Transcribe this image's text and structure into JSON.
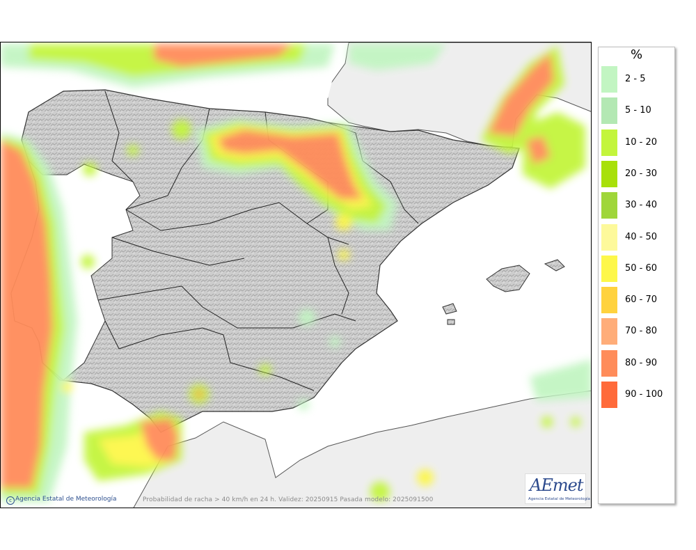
{
  "map": {
    "caption": "Probabilidad de racha > 40 km/h en 24 h. Validez: 20250915 Pasada modelo: 2025091500",
    "credit": "Agencia Estatal de Meteorología",
    "logo_text": "AEmet",
    "logo_subtitle": "Agencia Estatal de Meteorología"
  },
  "legend": {
    "unit": "%",
    "items": [
      {
        "label": "2 - 5",
        "color": "#c2f5c2"
      },
      {
        "label": "5 - 10",
        "color": "#b3e8b3"
      },
      {
        "label": "10 - 20",
        "color": "#c3f53c"
      },
      {
        "label": "20 - 30",
        "color": "#a8e00a"
      },
      {
        "label": "30 - 40",
        "color": "#9fd63a"
      },
      {
        "label": "40 - 50",
        "color": "#fdf99b"
      },
      {
        "label": "50 - 60",
        "color": "#fdf74a"
      },
      {
        "label": "60 - 70",
        "color": "#ffd23e"
      },
      {
        "label": "70 - 80",
        "color": "#ffad79"
      },
      {
        "label": "80 - 90",
        "color": "#ff8c5a"
      },
      {
        "label": "90 - 100",
        "color": "#ff6a3a"
      }
    ]
  }
}
